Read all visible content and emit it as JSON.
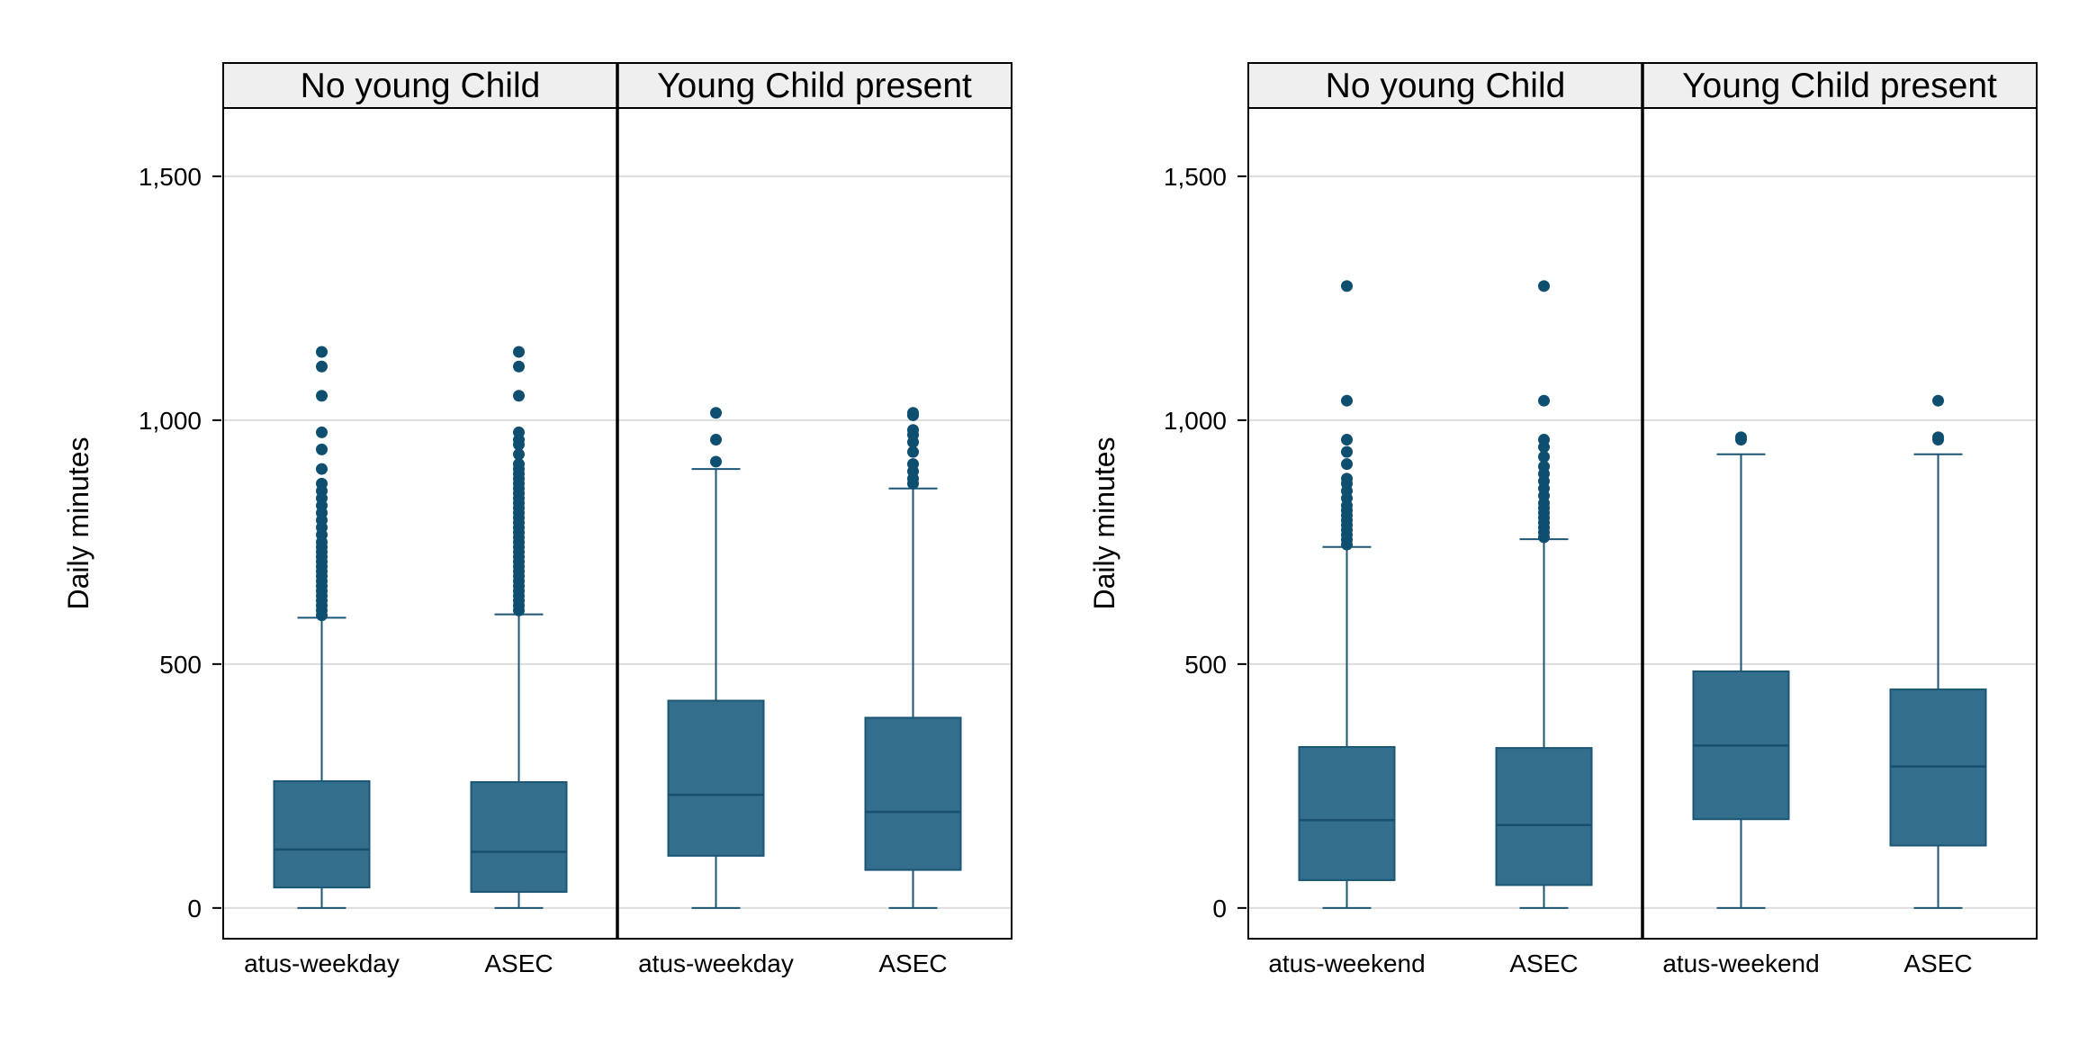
{
  "chart_data": [
    {
      "type": "box",
      "ylabel": "Daily minutes",
      "ylim": [
        -63,
        1640
      ],
      "yticks": [
        0,
        500,
        1000,
        1500
      ],
      "yticklabels": [
        "0",
        "500",
        "1,000",
        "1,500"
      ],
      "grid": true,
      "panels": [
        {
          "title": "No young Child",
          "boxes": [
            {
              "category": "atus-weekday",
              "min": 0,
              "q1": 42,
              "median": 120,
              "q3": 260,
              "whisker_high": 595,
              "outliers": [
                600,
                610,
                620,
                630,
                640,
                650,
                660,
                670,
                680,
                690,
                700,
                710,
                720,
                730,
                740,
                750,
                765,
                780,
                795,
                810,
                825,
                840,
                855,
                870,
                900,
                940,
                975,
                1050,
                1110,
                1140
              ]
            },
            {
              "category": "ASEC",
              "min": 0,
              "q1": 33,
              "median": 115,
              "q3": 258,
              "whisker_high": 602,
              "outliers": [
                610,
                620,
                630,
                640,
                650,
                660,
                670,
                680,
                690,
                700,
                710,
                720,
                730,
                740,
                750,
                760,
                770,
                780,
                790,
                800,
                810,
                820,
                830,
                840,
                850,
                860,
                870,
                880,
                890,
                900,
                910,
                930,
                950,
                960,
                975,
                1050,
                1110,
                1140
              ]
            }
          ]
        },
        {
          "title": "Young Child present",
          "boxes": [
            {
              "category": "atus-weekday",
              "min": 0,
              "q1": 107,
              "median": 232,
              "q3": 425,
              "whisker_high": 900,
              "outliers": [
                915,
                960,
                1015
              ]
            },
            {
              "category": "ASEC",
              "min": 0,
              "q1": 78,
              "median": 197,
              "q3": 390,
              "whisker_high": 860,
              "outliers": [
                870,
                880,
                895,
                910,
                935,
                955,
                970,
                980,
                1010,
                1015
              ]
            }
          ]
        }
      ]
    },
    {
      "type": "box",
      "ylabel": "Daily minutes",
      "ylim": [
        -63,
        1640
      ],
      "yticks": [
        0,
        500,
        1000,
        1500
      ],
      "yticklabels": [
        "0",
        "500",
        "1,000",
        "1,500"
      ],
      "grid": true,
      "panels": [
        {
          "title": "No young Child",
          "boxes": [
            {
              "category": "atus-weekend",
              "min": 0,
              "q1": 57,
              "median": 180,
              "q3": 330,
              "whisker_high": 740,
              "outliers": [
                745,
                755,
                765,
                775,
                785,
                795,
                805,
                815,
                825,
                840,
                855,
                870,
                880,
                910,
                935,
                960,
                1040,
                1275
              ]
            },
            {
              "category": "ASEC",
              "min": 0,
              "q1": 47,
              "median": 170,
              "q3": 328,
              "whisker_high": 756,
              "outliers": [
                760,
                770,
                780,
                790,
                800,
                810,
                820,
                830,
                845,
                860,
                875,
                890,
                905,
                925,
                945,
                960,
                1040,
                1275
              ]
            }
          ]
        },
        {
          "title": "Young Child present",
          "boxes": [
            {
              "category": "atus-weekend",
              "min": 0,
              "q1": 182,
              "median": 333,
              "q3": 485,
              "whisker_high": 930,
              "outliers": [
                960,
                965
              ]
            },
            {
              "category": "ASEC",
              "min": 0,
              "q1": 128,
              "median": 290,
              "q3": 448,
              "whisker_high": 930,
              "outliers": [
                960,
                965,
                1040
              ]
            }
          ]
        }
      ]
    }
  ]
}
